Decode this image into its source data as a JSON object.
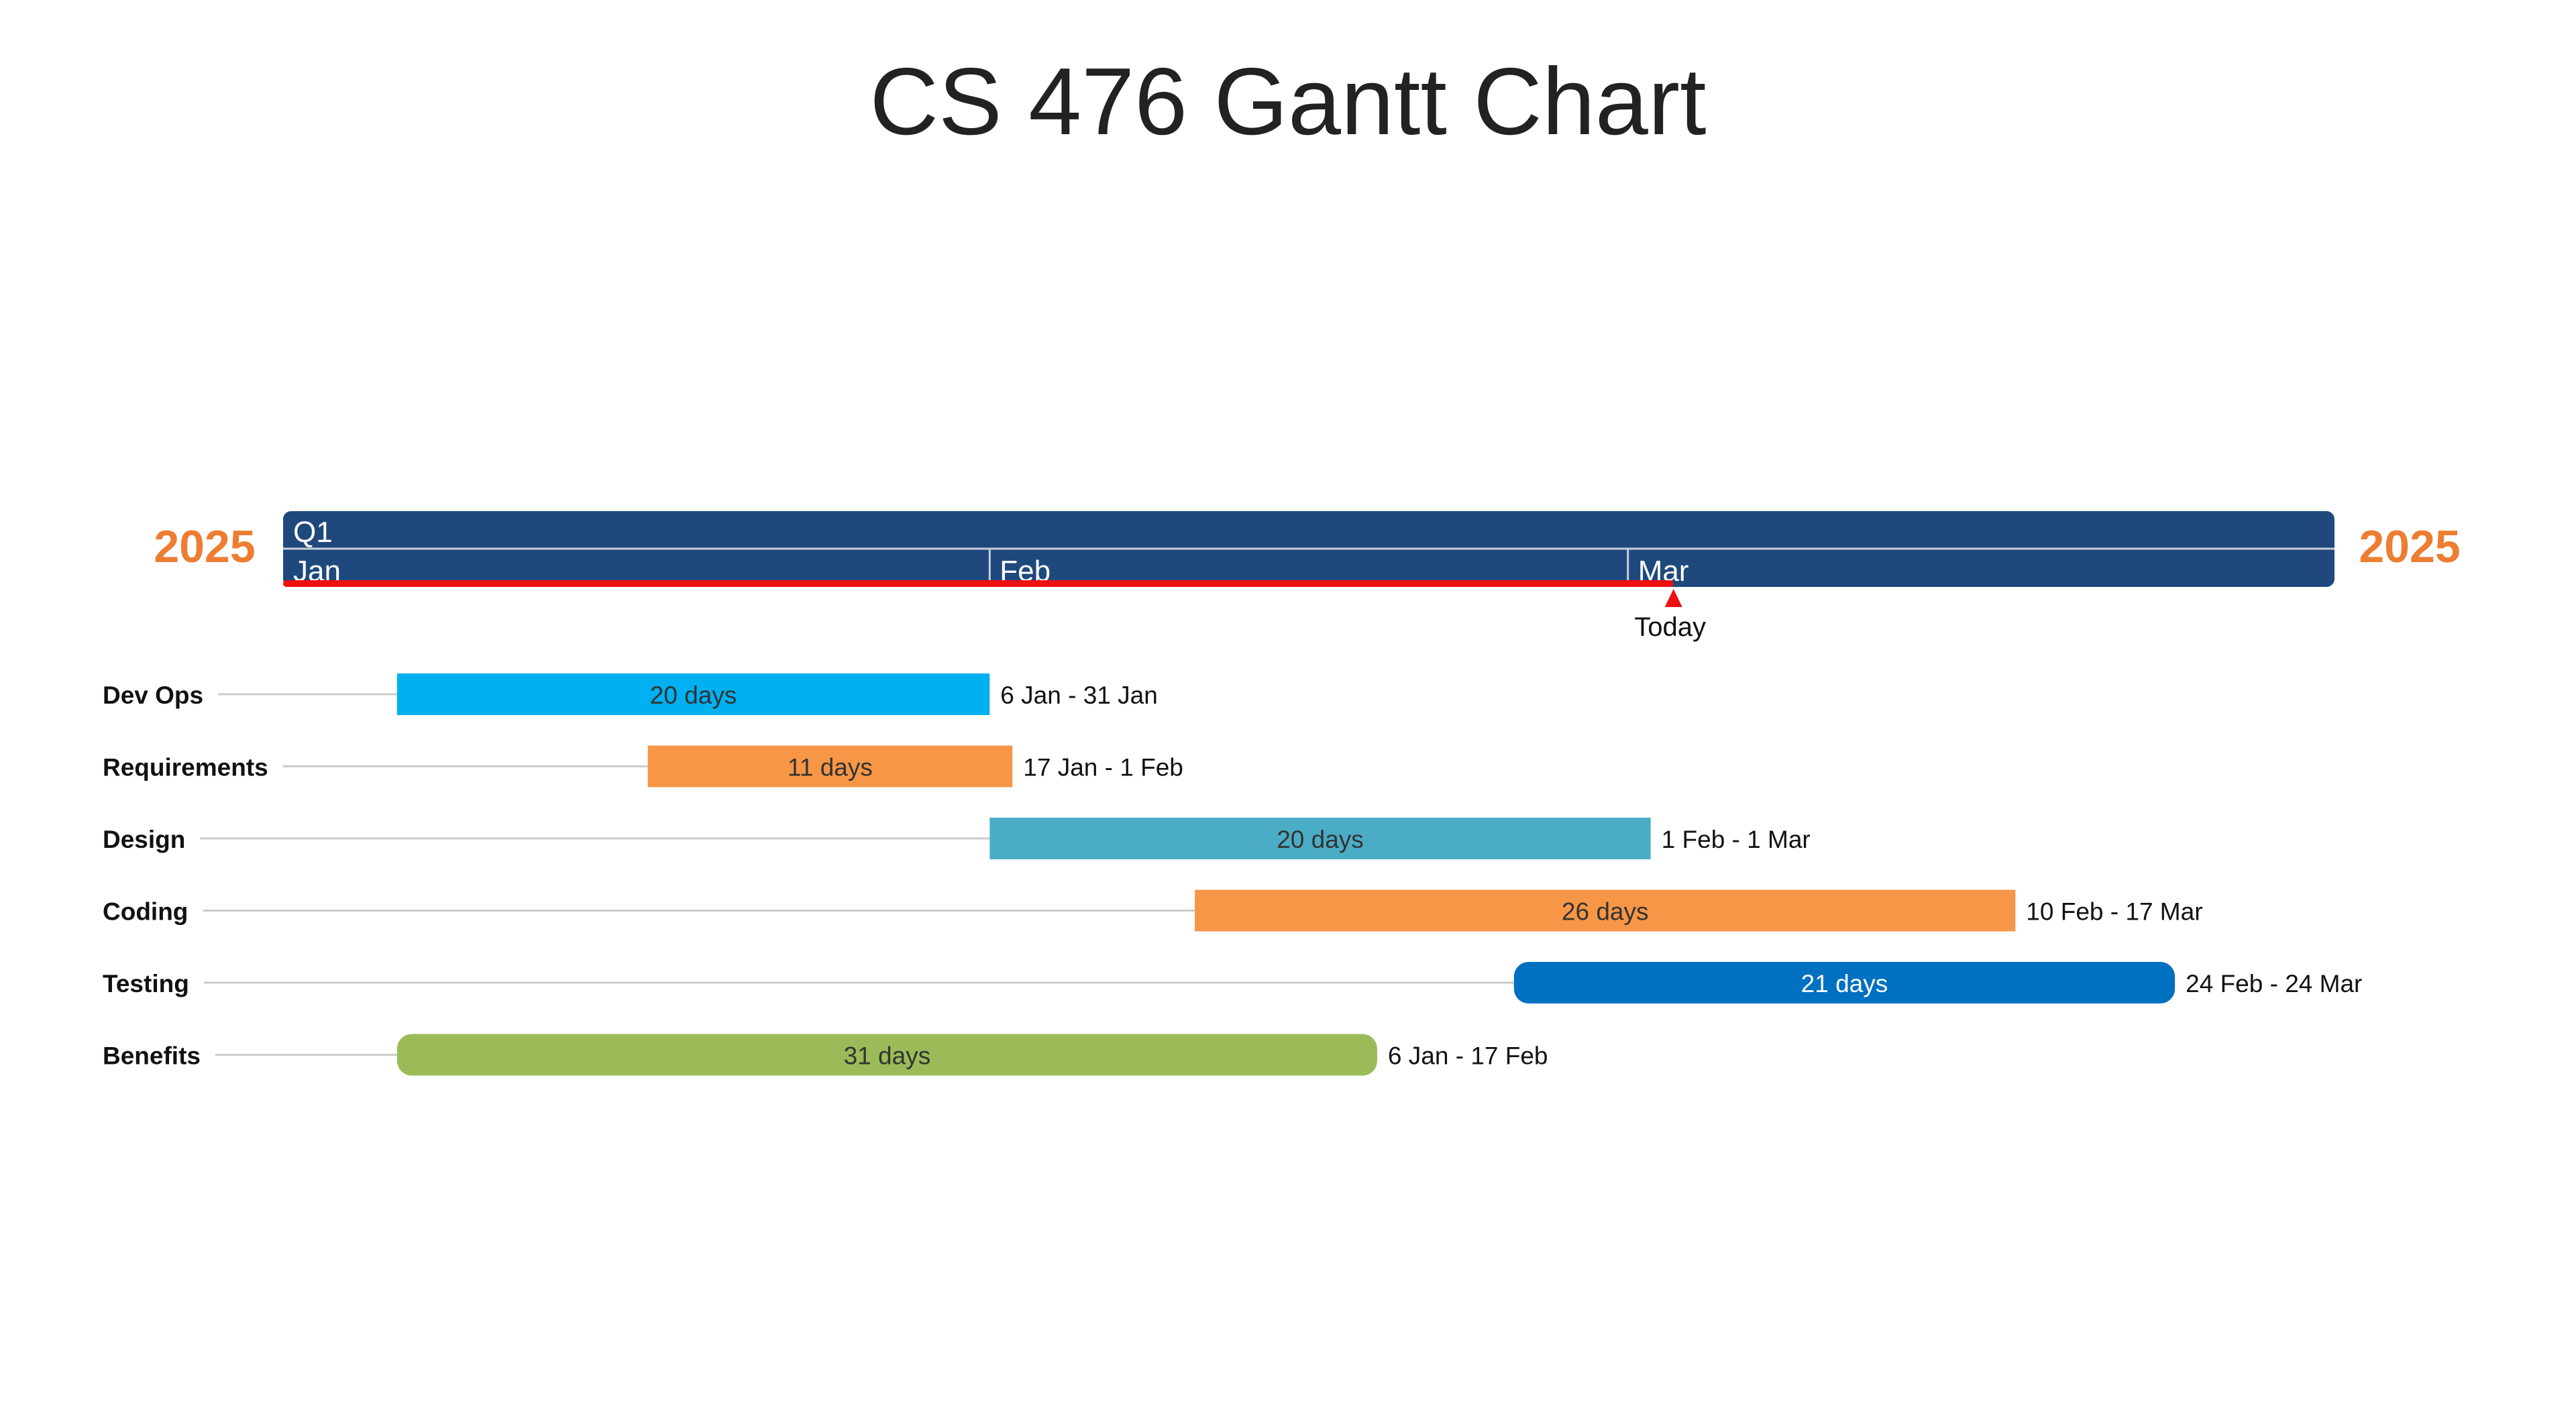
{
  "chart_data": {
    "type": "gantt",
    "title": "CS 476 Gantt Chart",
    "year_label_left": "2025",
    "year_label_right": "2025",
    "quarter_label": "Q1",
    "month_labels": [
      "Jan",
      "Feb",
      "Mar"
    ],
    "today_label": "Today",
    "today_date": "2025-03-03",
    "x_range": [
      "2025-01-01",
      "2025-03-31"
    ],
    "tasks": [
      {
        "name": "Dev Ops",
        "start": "2025-01-06",
        "end": "2025-01-31",
        "duration_label": "20 days",
        "range_label": "6 Jan - 31 Jan",
        "color": "#00B0F0",
        "shape": "rect",
        "label_color": "#333333"
      },
      {
        "name": "Requirements",
        "start": "2025-01-17",
        "end": "2025-02-01",
        "duration_label": "11 days",
        "range_label": "17 Jan - 1 Feb",
        "color": "#F79646",
        "shape": "rect",
        "label_color": "#333333"
      },
      {
        "name": "Design",
        "start": "2025-02-01",
        "end": "2025-03-01",
        "duration_label": "20 days",
        "range_label": "1 Feb - 1 Mar",
        "color": "#4BACC6",
        "shape": "rect",
        "label_color": "#333333"
      },
      {
        "name": "Coding",
        "start": "2025-02-10",
        "end": "2025-03-17",
        "duration_label": "26 days",
        "range_label": "10 Feb - 17 Mar",
        "color": "#F79646",
        "shape": "rect",
        "label_color": "#333333"
      },
      {
        "name": "Testing",
        "start": "2025-02-24",
        "end": "2025-03-24",
        "duration_label": "21 days",
        "range_label": "24 Feb - 24 Mar",
        "color": "#0070C0",
        "shape": "rounded",
        "label_color": "#FFFFFF"
      },
      {
        "name": "Benefits",
        "start": "2025-01-06",
        "end": "2025-02-17",
        "duration_label": "31 days",
        "range_label": "6 Jan - 17 Feb",
        "color": "#9BBB59",
        "shape": "rounded",
        "label_color": "#333333"
      }
    ],
    "colors": {
      "timeline": "#1F497D",
      "year_labels": "#ED7D31",
      "today_marker": "#EE1111",
      "leader_line": "#CCCCCC"
    }
  }
}
